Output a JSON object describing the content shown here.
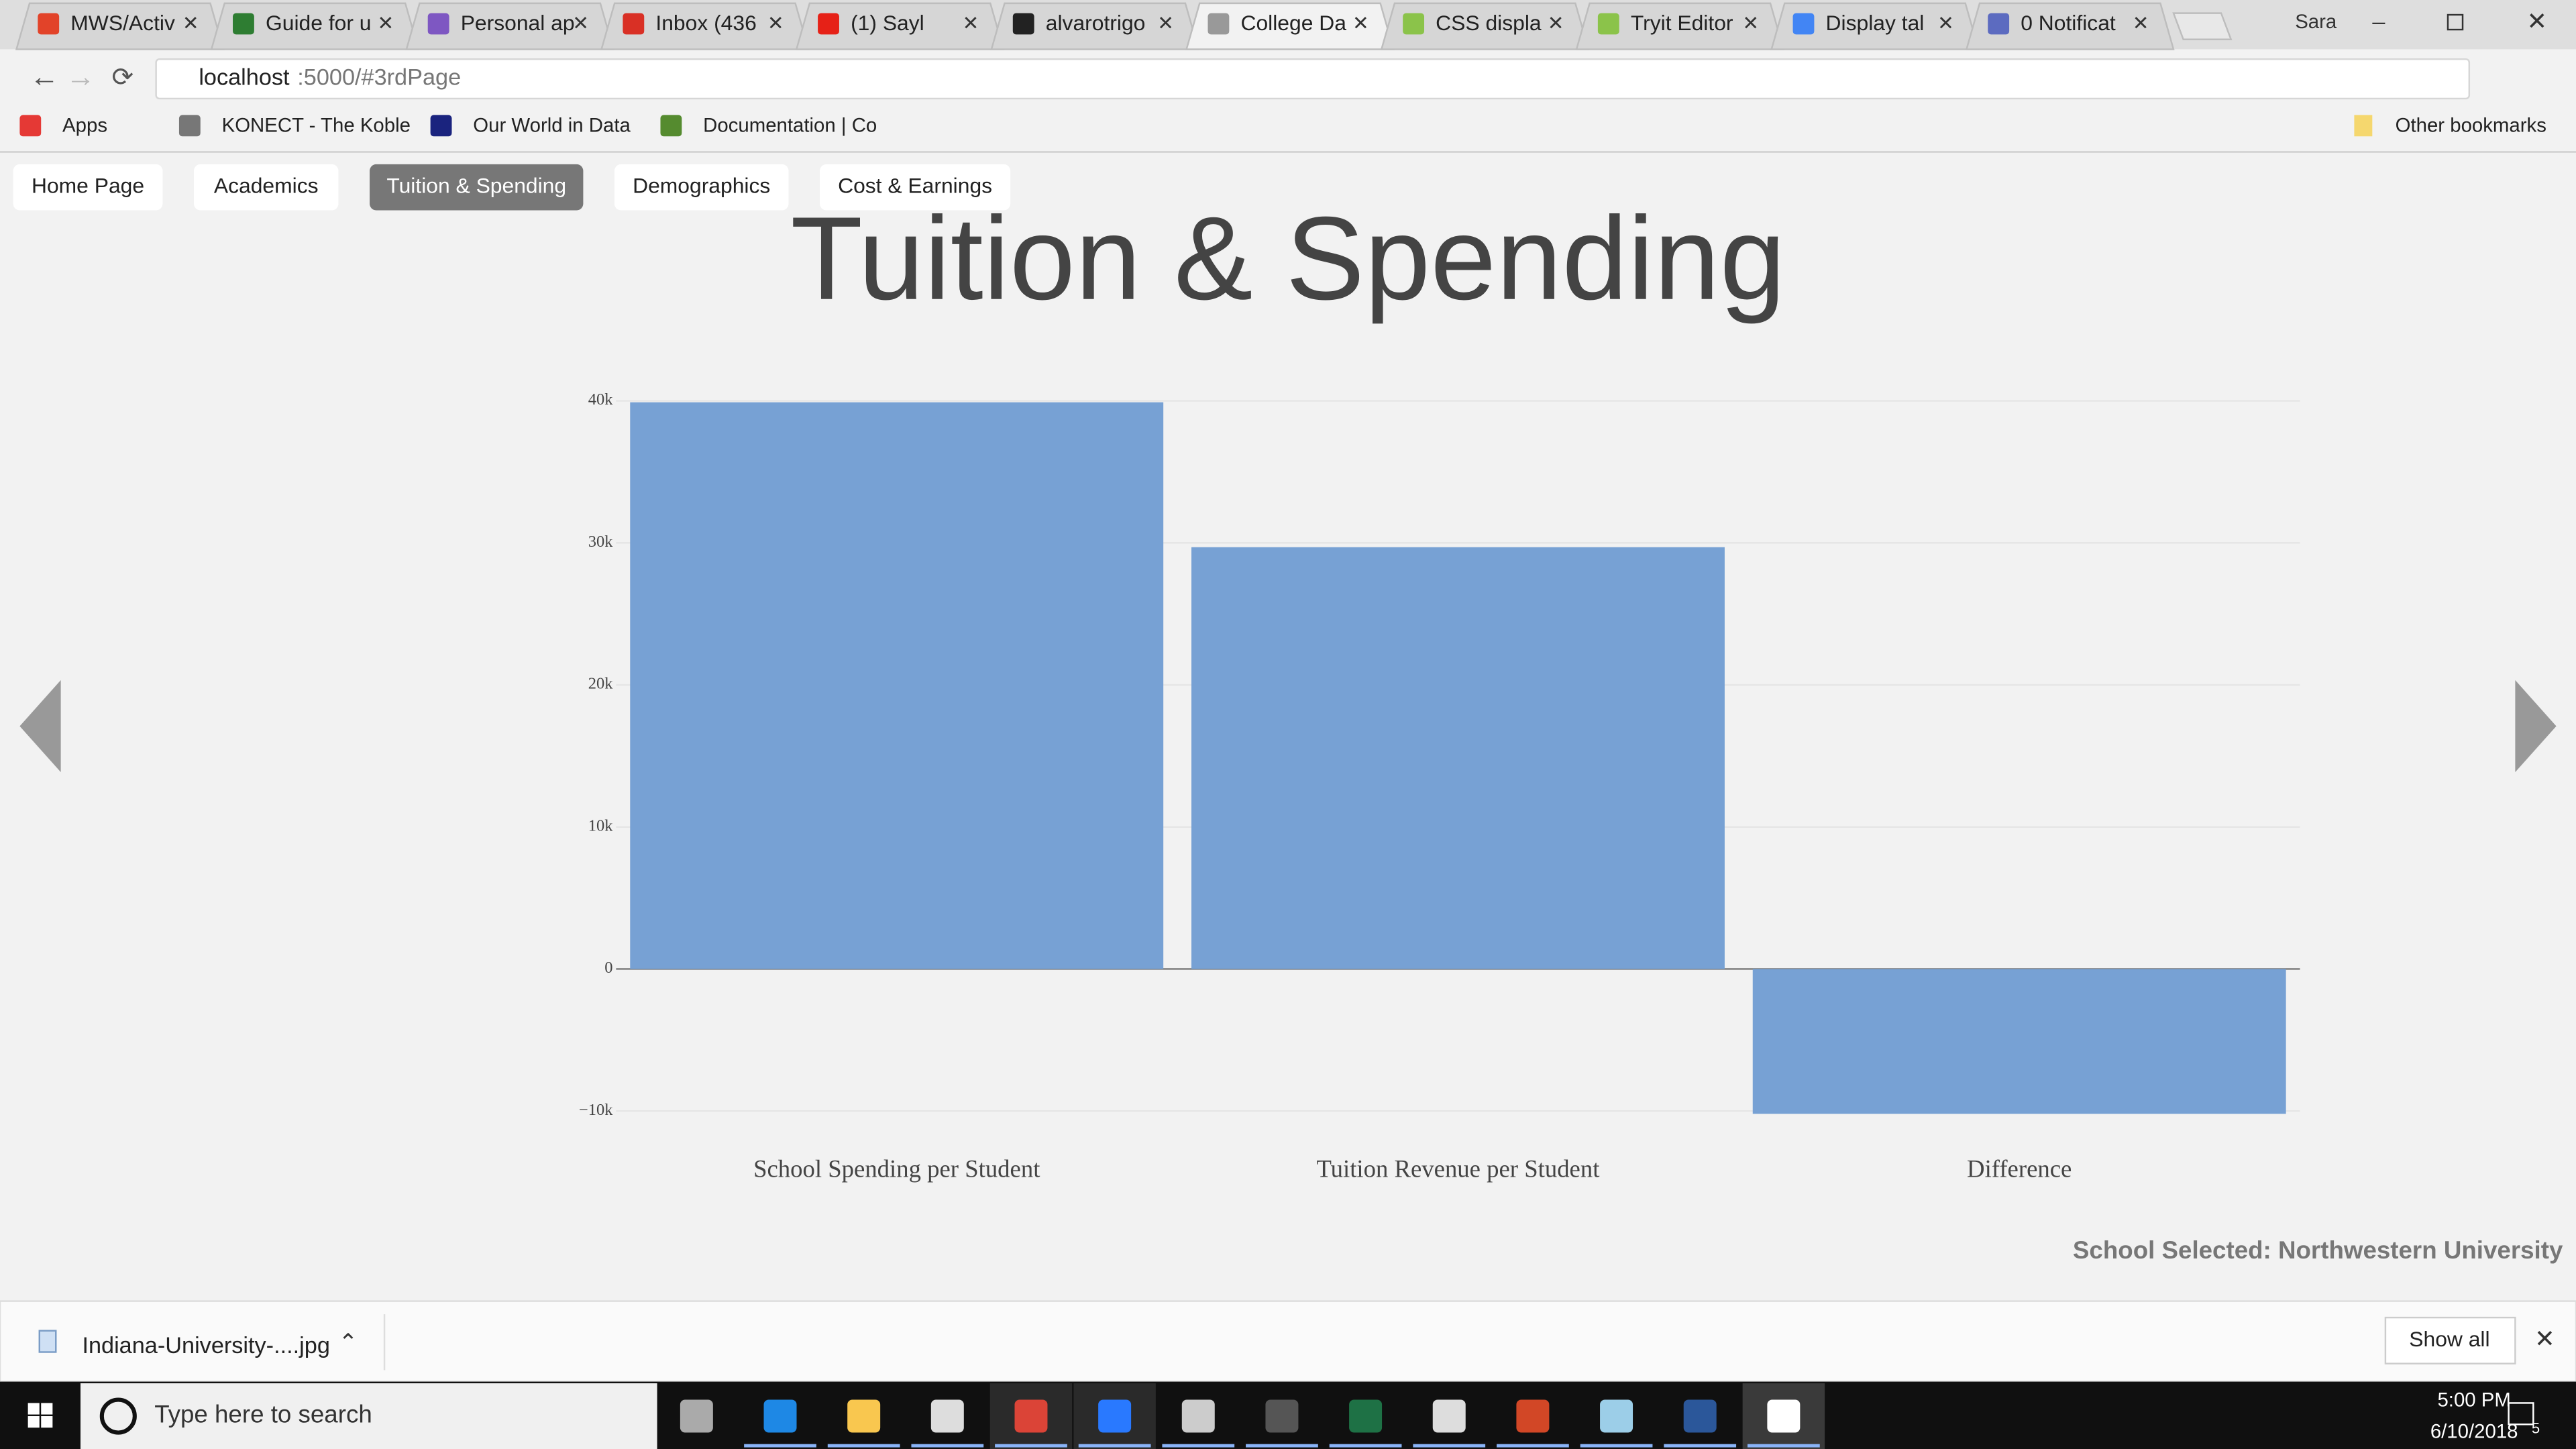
{
  "browser": {
    "tabs": [
      "MWS/Activ",
      "Guide for u",
      "Personal ap",
      "Inbox (436",
      "(1) Sayl",
      "alvarotrigo",
      "College Da",
      "CSS displa",
      "Tryit Editor",
      "Display tal",
      "0 Notificat"
    ],
    "profile": "Sara",
    "url_host": "localhost",
    "url_rest": ":5000/#3rdPage",
    "bookmarks": [
      "Apps",
      "KONECT - The Koble",
      "Our World in Data",
      "Documentation | Co"
    ],
    "other_bookmarks": "Other bookmarks"
  },
  "nav": [
    "Home Page",
    "Academics",
    "Tuition & Spending",
    "Demographics",
    "Cost & Earnings"
  ],
  "chart_data": {
    "type": "bar",
    "title": "Tuition & Spending",
    "categories": [
      "School Spending per Student",
      "Tuition Revenue per Student",
      "Difference"
    ],
    "values": [
      39900,
      29700,
      -10200
    ],
    "color": "#77a1d4",
    "ylim": [
      -10200,
      40000
    ],
    "yticks": [
      {
        "value": -10000,
        "label": "−10k"
      },
      0,
      {
        "value": 10000,
        "label": "10k"
      },
      {
        "value": 20000,
        "label": "20k"
      },
      {
        "value": 30000,
        "label": "30k"
      },
      {
        "value": 40000,
        "label": "40k"
      }
    ],
    "grid": true
  },
  "school_selected": "School Selected: Northwestern University",
  "download": {
    "file": "Indiana-University-....jpg",
    "show_all": "Show all"
  },
  "taskbar": {
    "search": "Type here to search",
    "time": "5:00 PM",
    "date": "6/10/2018",
    "notifications": "5"
  }
}
